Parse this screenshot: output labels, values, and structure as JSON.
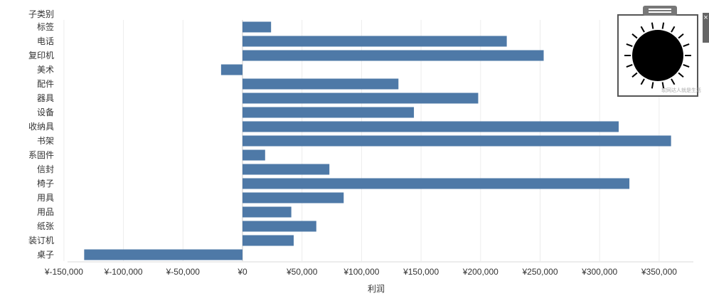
{
  "rows_header": "子类别",
  "chart_data": {
    "type": "bar",
    "orientation": "horizontal",
    "categories": [
      "标签",
      "电话",
      "复印机",
      "美术",
      "配件",
      "器具",
      "设备",
      "收纳具",
      "书架",
      "系固件",
      "信封",
      "椅子",
      "用具",
      "用品",
      "纸张",
      "装订机",
      "桌子"
    ],
    "values": [
      24000,
      222000,
      253000,
      -18000,
      131000,
      198000,
      144000,
      316000,
      360000,
      19000,
      73000,
      325000,
      85000,
      41000,
      62000,
      43000,
      -133000
    ],
    "xlim": [
      -150000,
      370000
    ],
    "xticks": [
      -150000,
      -100000,
      -50000,
      0,
      50000,
      100000,
      150000,
      200000,
      250000,
      300000,
      350000
    ],
    "tick_labels": [
      "¥-150,000",
      "¥-100,000",
      "¥-50,000",
      "¥0",
      "¥50,000",
      "¥100,000",
      "¥150,000",
      "¥200,000",
      "¥250,000",
      "¥300,000",
      "¥350,000"
    ],
    "xlabel": "利润",
    "ylabel": "子类别",
    "grid": true,
    "bar_color": "#4e79a7"
  },
  "overlay": {
    "icon": "sun-icon",
    "watermark": "软网达人就是生活",
    "side_tab_glyph": "×"
  }
}
